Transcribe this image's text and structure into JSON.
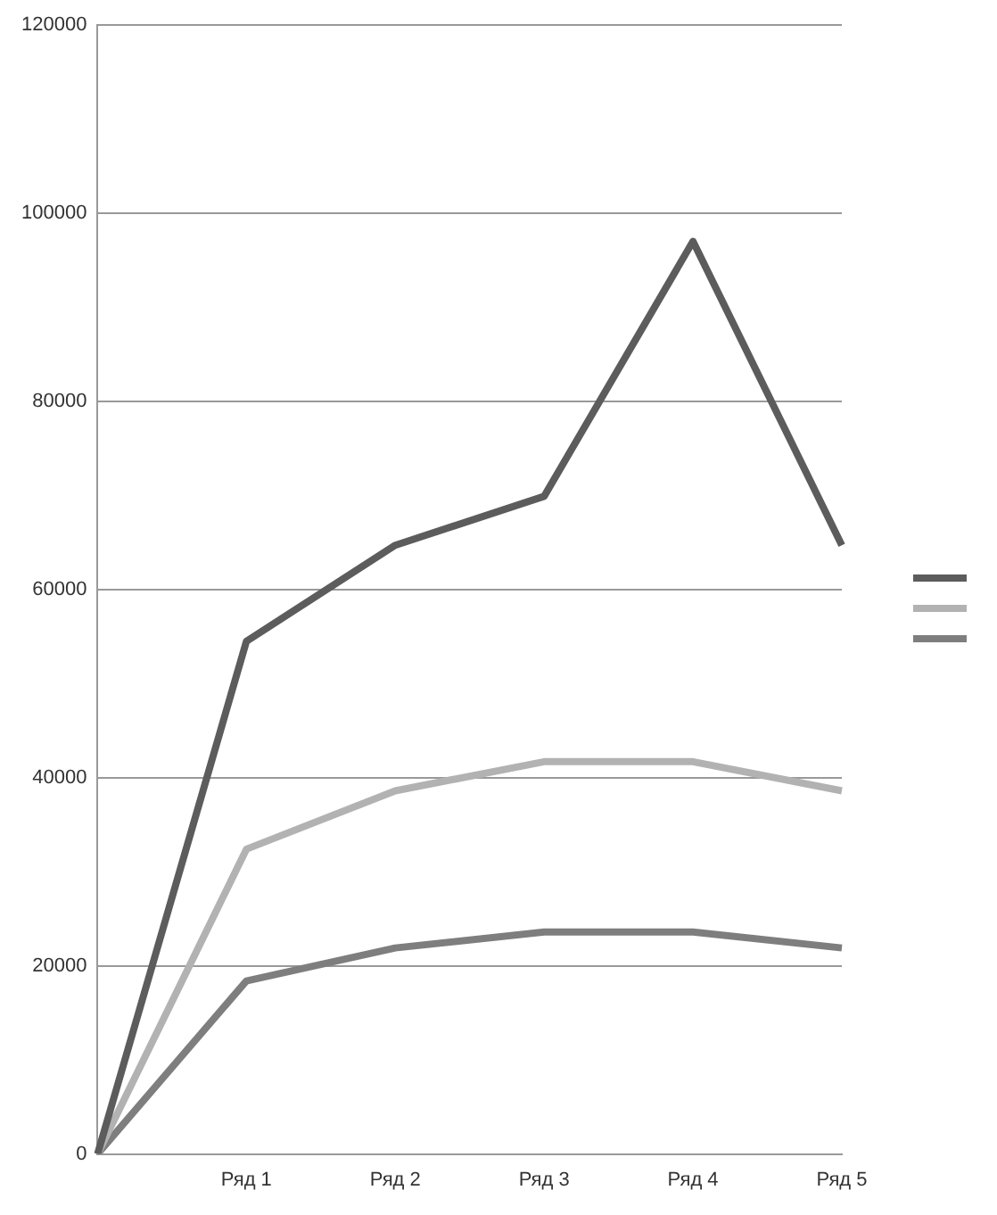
{
  "chart_data": {
    "type": "line",
    "categories": [
      null,
      "Ряд 1",
      "Ряд 2",
      "Ряд 3",
      "Ряд 4",
      "Ряд 5"
    ],
    "series": [
      {
        "color": "#5c5c5c",
        "values": [
          0,
          54500,
          64700,
          69900,
          97000,
          64700
        ]
      },
      {
        "color": "#b2b2b2",
        "values": [
          0,
          32400,
          38600,
          41700,
          41700,
          38600
        ]
      },
      {
        "color": "#7e7e7e",
        "values": [
          0,
          18400,
          21900,
          23600,
          23600,
          21900
        ]
      }
    ],
    "ylim": [
      0,
      120000
    ],
    "yticks": [
      0,
      20000,
      40000,
      60000,
      80000,
      100000,
      120000
    ],
    "grid": "y",
    "marker": "none",
    "line_style": "solid"
  }
}
